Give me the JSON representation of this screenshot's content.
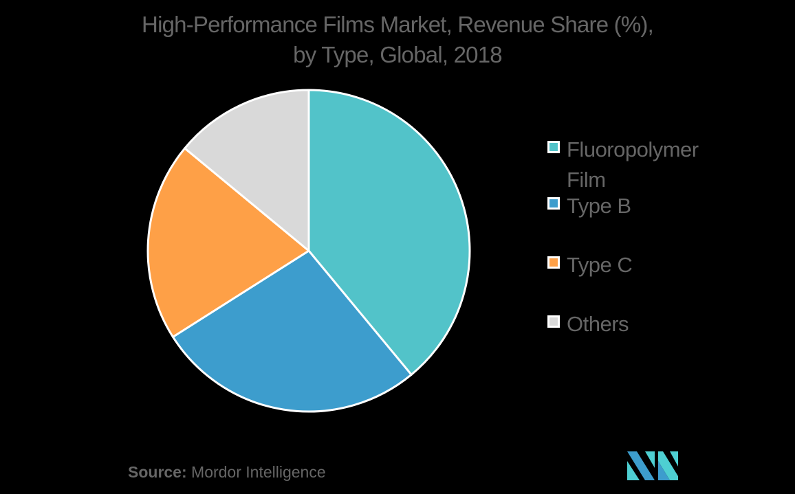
{
  "title": {
    "line1": "High-Performance Films Market, Revenue Share (%),",
    "line2": "by Type, Global, 2018"
  },
  "legend": [
    {
      "label": "Fluoropolymer Film",
      "color": "#52c3c9"
    },
    {
      "label": "Type B",
      "color": "#3d9dcd"
    },
    {
      "label": "Type C",
      "color": "#fea047"
    },
    {
      "label": "Others",
      "color": "#d9d9d9"
    }
  ],
  "source": {
    "prefix": "Source:",
    "text": "Mordor Intelligence"
  },
  "logo": {
    "icon": "mordor-intelligence-logo-icon",
    "colors": [
      "#3d9dcd",
      "#4ecfd2"
    ]
  },
  "chart_data": {
    "type": "pie",
    "title": "High-Performance Films Market, Revenue Share (%), by Type, Global, 2018",
    "categories": [
      "Fluoropolymer Film",
      "Type B",
      "Type C",
      "Others"
    ],
    "values": [
      39,
      27,
      20,
      14
    ],
    "colors": [
      "#52c3c9",
      "#3d9dcd",
      "#fea047",
      "#d9d9d9"
    ],
    "start_angle_deg": 0,
    "direction": "clockwise",
    "legend_position": "right",
    "data_labels": false,
    "source": "Mordor Intelligence"
  }
}
